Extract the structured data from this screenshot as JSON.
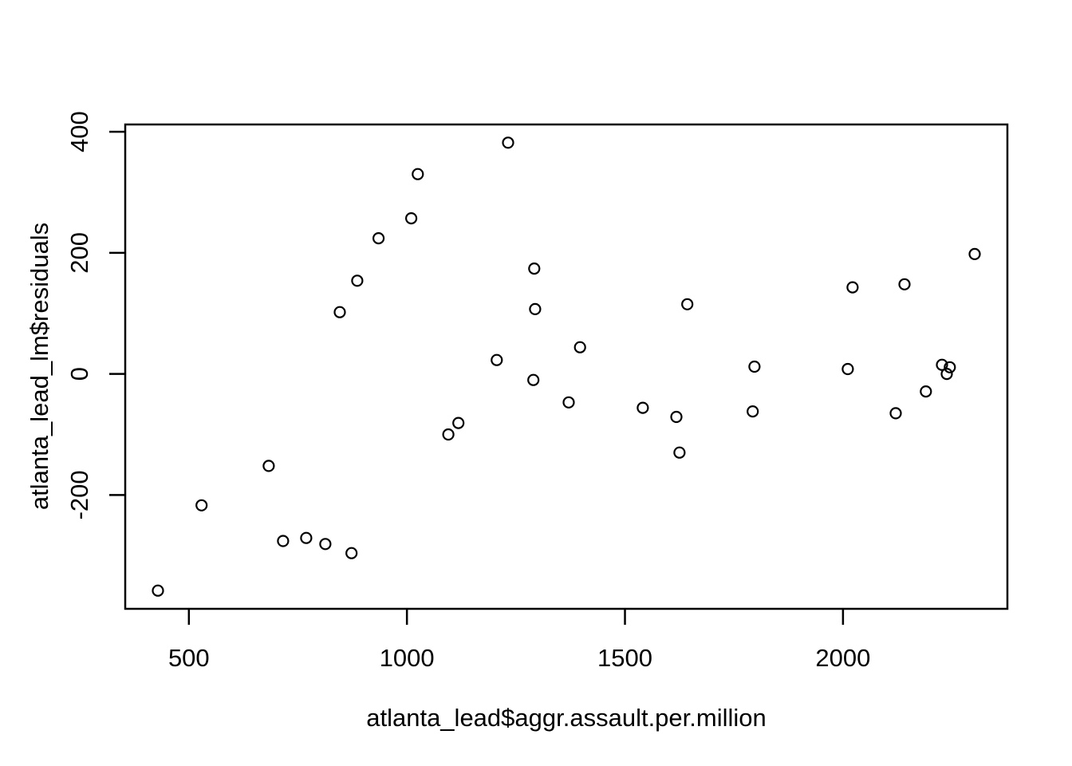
{
  "figure": {
    "background_color": "#ffffff",
    "foreground_color": "#000000"
  },
  "chart_data": {
    "type": "scatter",
    "title": "",
    "xlabel": "atlanta_lead$aggr.assault.per.million",
    "ylabel": "atlanta_lead_lm$residuals",
    "x_ticks": [
      500,
      1000,
      1500,
      2000
    ],
    "y_ticks": [
      -200,
      0,
      200,
      400
    ],
    "xlim": [
      354,
      2377
    ],
    "ylim": [
      -388,
      412
    ],
    "grid": false,
    "legend_position": "none",
    "marker": "open-circle",
    "marker_color": "#000000",
    "points": [
      [
        429,
        -358
      ],
      [
        529,
        -217
      ],
      [
        683,
        -152
      ],
      [
        716,
        -276
      ],
      [
        769,
        -271
      ],
      [
        813,
        -281
      ],
      [
        846,
        102
      ],
      [
        873,
        -296
      ],
      [
        886,
        154
      ],
      [
        935,
        224
      ],
      [
        1010,
        257
      ],
      [
        1025,
        330
      ],
      [
        1095,
        -100
      ],
      [
        1118,
        -81
      ],
      [
        1206,
        23
      ],
      [
        1232,
        382
      ],
      [
        1290,
        -10
      ],
      [
        1292,
        174
      ],
      [
        1294,
        107
      ],
      [
        1371,
        -47
      ],
      [
        1397,
        44
      ],
      [
        1541,
        -56
      ],
      [
        1618,
        -71
      ],
      [
        1625,
        -130
      ],
      [
        1643,
        115
      ],
      [
        1793,
        -62
      ],
      [
        1797,
        12
      ],
      [
        2011,
        8
      ],
      [
        2022,
        143
      ],
      [
        2121,
        -65
      ],
      [
        2141,
        148
      ],
      [
        2190,
        -29
      ],
      [
        2227,
        15
      ],
      [
        2238,
        0
      ],
      [
        2245,
        11
      ],
      [
        2302,
        198
      ]
    ]
  }
}
